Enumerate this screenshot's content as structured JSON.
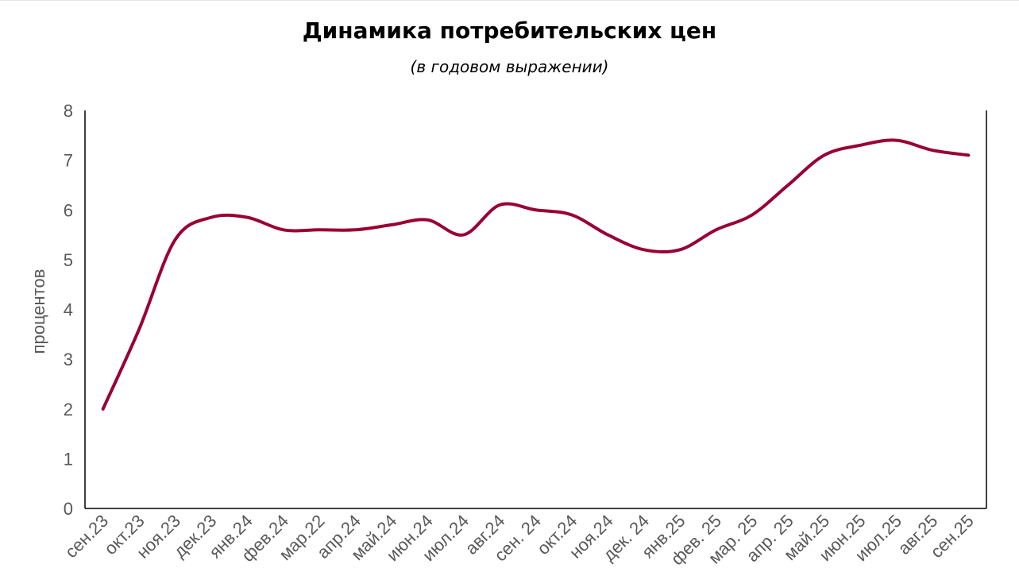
{
  "chart_data": {
    "type": "line",
    "title": "Динамика потребительских цен",
    "subtitle": "(в годовом выражении)",
    "xlabel": "",
    "ylabel": "процентов",
    "ylim": [
      0,
      8
    ],
    "yticks": [
      "0",
      "1",
      "2",
      "3",
      "4",
      "5",
      "6",
      "7",
      "8"
    ],
    "grid": false,
    "legend": "none",
    "categories": [
      "сен.23",
      "окт.23",
      "ноя.23",
      "дек.23",
      "янв.24",
      "фев.24",
      "мар.22",
      "апр.24",
      "май.24",
      "июн.24",
      "июл.24",
      "авг.24",
      "сен. 24",
      "окт.24",
      "ноя.24",
      "дек. 24",
      "янв.25",
      "фев. 25",
      "мар. 25",
      "апр. 25",
      "май.25",
      "июн.25",
      "июл.25",
      "авг.25",
      "сен.25"
    ],
    "series": [
      {
        "values": [
          2.0,
          3.6,
          5.4,
          5.85,
          5.85,
          5.6,
          5.6,
          5.6,
          5.7,
          5.8,
          5.5,
          6.1,
          6.0,
          5.9,
          5.5,
          5.2,
          5.2,
          5.6,
          5.9,
          6.5,
          7.1,
          7.3,
          7.4,
          7.2,
          7.1
        ],
        "color": "#990033"
      }
    ]
  }
}
